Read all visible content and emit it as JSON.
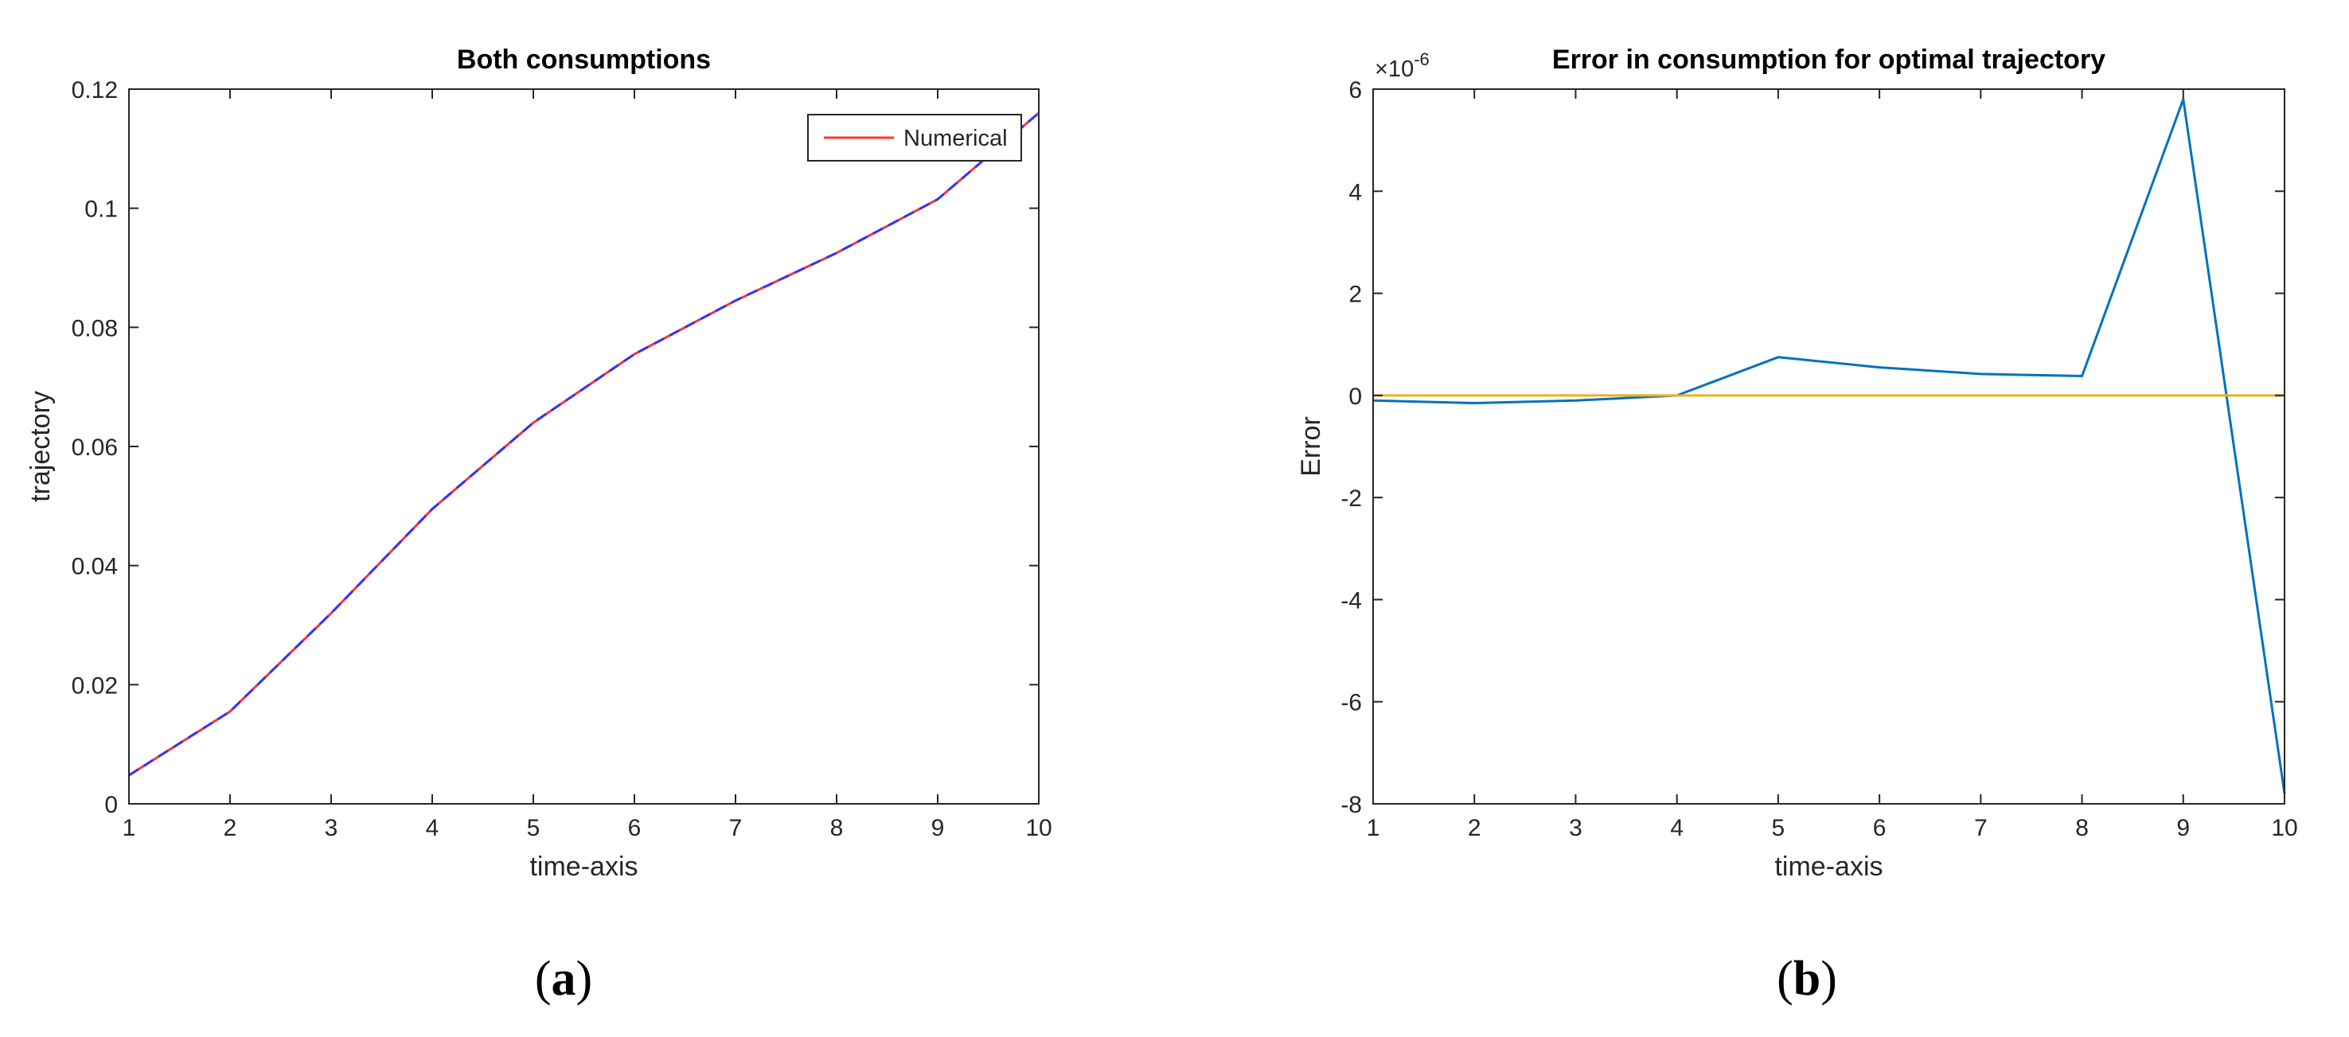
{
  "chart_data": [
    {
      "type": "line",
      "title": "Both consumptions",
      "xlabel": "time-axis",
      "ylabel": "trajectory",
      "panel_label_open": "(",
      "panel_label": "a",
      "panel_label_close": ")",
      "xlim": [
        1,
        10
      ],
      "ylim": [
        0,
        0.12
      ],
      "xticks": [
        1,
        2,
        3,
        4,
        5,
        6,
        7,
        8,
        9,
        10
      ],
      "yticks": [
        0,
        0.02,
        0.04,
        0.06,
        0.08,
        0.1,
        0.12
      ],
      "ytick_labels": [
        "0",
        "0.02",
        "0.04",
        "0.06",
        "0.08",
        "0.1",
        "0.12"
      ],
      "grid": false,
      "legend_position": "top-right",
      "x": [
        1,
        2,
        3,
        4,
        5,
        6,
        7,
        8,
        9,
        10
      ],
      "series": [
        {
          "name": "Numerical",
          "color": "#ff3333",
          "style": "solid",
          "values": [
            0.0048,
            0.0155,
            0.032,
            0.0495,
            0.064,
            0.0755,
            0.0845,
            0.0925,
            0.1015,
            0.116
          ]
        },
        {
          "name": "",
          "color": "#3333ff",
          "style": "dashed",
          "values": [
            0.0048,
            0.0155,
            0.032,
            0.0495,
            0.064,
            0.0755,
            0.0845,
            0.0925,
            0.1015,
            0.116
          ]
        }
      ]
    },
    {
      "type": "line",
      "title": "Error in consumption for optimal trajectory",
      "xlabel": "time-axis",
      "ylabel": "Error",
      "panel_label_open": "(",
      "panel_label": "b",
      "panel_label_close": ")",
      "exponent_base": "×10",
      "exponent_power": "-6",
      "xlim": [
        1,
        10
      ],
      "ylim": [
        -8,
        6
      ],
      "xticks": [
        1,
        2,
        3,
        4,
        5,
        6,
        7,
        8,
        9,
        10
      ],
      "yticks": [
        -8,
        -6,
        -4,
        -2,
        0,
        2,
        4,
        6
      ],
      "ytick_labels": [
        "-8",
        "-6",
        "-4",
        "-2",
        "0",
        "2",
        "4",
        "6"
      ],
      "grid": false,
      "x": [
        1,
        2,
        3,
        4,
        5,
        6,
        7,
        8,
        9,
        10
      ],
      "series": [
        {
          "name": "",
          "color": "#0072bd",
          "values": [
            -0.1,
            -0.15,
            -0.1,
            0.0,
            0.75,
            0.55,
            0.42,
            0.38,
            5.8,
            -7.8
          ]
        },
        {
          "name": "",
          "color": "#edb120",
          "values": [
            0,
            0,
            0,
            0,
            0,
            0,
            0,
            0,
            0,
            0
          ]
        }
      ]
    }
  ]
}
